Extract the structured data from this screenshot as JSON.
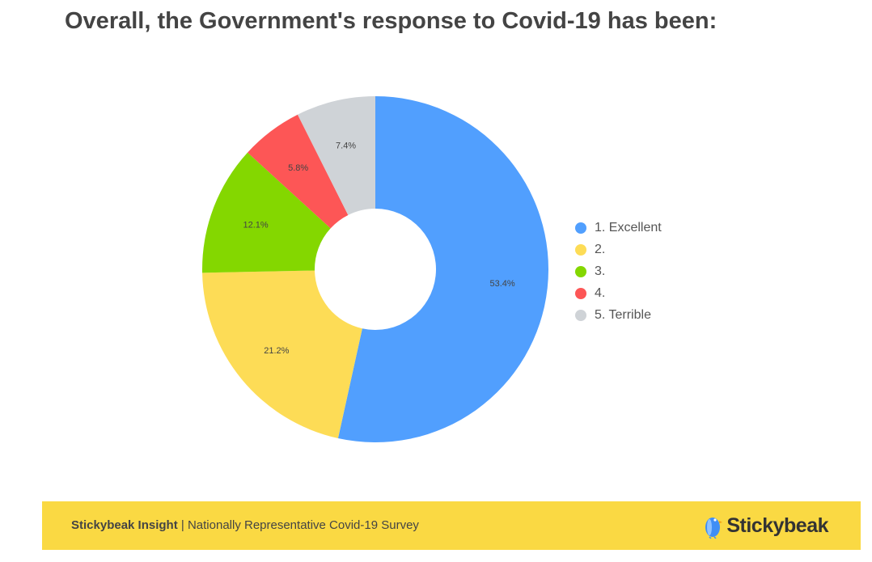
{
  "title": "Overall, the Government's response to Covid-19 has been:",
  "chart_data": {
    "type": "pie",
    "donut": true,
    "categories": [
      "1. Excellent",
      "2.",
      "3.",
      "4.",
      "5. Terrible"
    ],
    "values": [
      53.4,
      21.2,
      12.1,
      5.8,
      7.4
    ],
    "value_labels": [
      "53.4%",
      "21.2%",
      "12.1%",
      "5.8%",
      "7.4%"
    ],
    "colors": [
      "#519ffe",
      "#fddc56",
      "#84d700",
      "#fd5656",
      "#cfd3d7"
    ],
    "legend_position": "right"
  },
  "footer": {
    "brand": "Stickybeak Insight",
    "separator": " | ",
    "subtitle": "Nationally Representative Covid-19 Survey",
    "logo_text": "Stickybeak"
  }
}
